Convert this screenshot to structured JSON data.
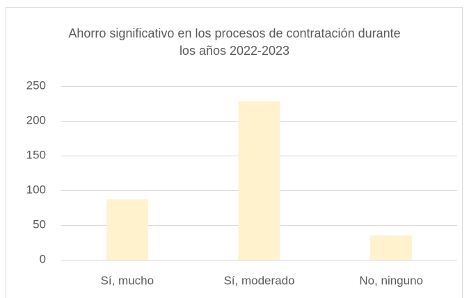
{
  "chart_data": {
    "type": "bar",
    "title": "Ahorro significativo en los procesos de contratación durante los años 2022-2023",
    "categories": [
      "Sí, mucho",
      "Sí, moderado",
      "No, ninguno"
    ],
    "values": [
      87,
      228,
      35
    ],
    "color": "#fff2cc",
    "ylim": [
      0,
      250
    ],
    "yticks": [
      0,
      50,
      100,
      150,
      200,
      250
    ],
    "grid": true
  }
}
